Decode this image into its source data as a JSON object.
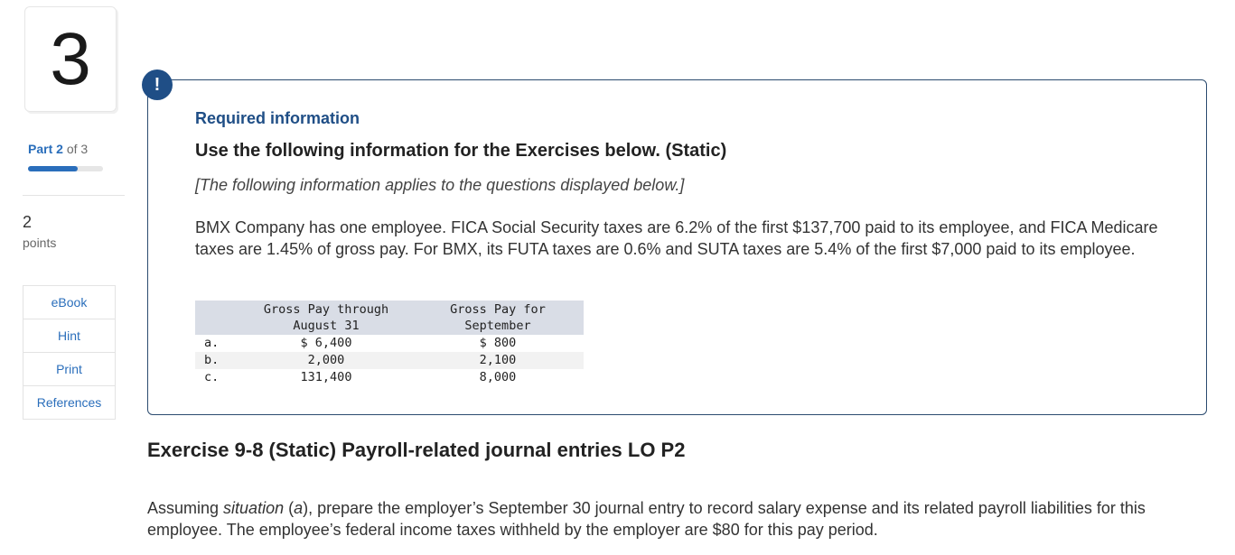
{
  "question": {
    "number": "3"
  },
  "part": {
    "prefix": "Part",
    "current": "2",
    "of_text": "of 3",
    "progress_fraction": 0.667
  },
  "points": {
    "value": "2",
    "label": "points"
  },
  "sidebar_buttons": [
    "eBook",
    "Hint",
    "Print",
    "References"
  ],
  "info": {
    "alert_symbol": "!",
    "required_label": "Required information",
    "use_title": "Use the following information for the Exercises below. (Static)",
    "note": "[The following information applies to the questions displayed below.]",
    "paragraph": "BMX Company has one employee. FICA Social Security taxes are 6.2% of the first $137,700 paid to its employee, and FICA Medicare taxes are 1.45% of gross pay. For BMX, its FUTA taxes are 0.6% and SUTA taxes are 5.4% of the first $7,000 paid to its employee."
  },
  "table": {
    "headers": {
      "aug_line1": "Gross Pay through",
      "aug_line2": "August 31",
      "sep_line1": "Gross Pay for",
      "sep_line2": "September"
    },
    "rows": [
      {
        "label": "a.",
        "aug": "$ 6,400",
        "sep": "$ 800"
      },
      {
        "label": "b.",
        "aug": "2,000",
        "sep": "2,100"
      },
      {
        "label": "c.",
        "aug": "131,400",
        "sep": "8,000"
      }
    ]
  },
  "exercise": {
    "title": "Exercise 9-8 (Static) Payroll-related journal entries LO P2",
    "para_start": "Assuming ",
    "para_situation": "situation",
    "para_open": " (",
    "para_letter": "a",
    "para_rest": "), prepare the employer’s September 30 journal entry to record salary expense and its related payroll liabilities for this employee. The employee’s federal income taxes withheld by the employer are $80 for this pay period."
  },
  "colors": {
    "accent": "#2a6ebb",
    "navy": "#1f4e86",
    "box_border": "#2b4b6f"
  }
}
